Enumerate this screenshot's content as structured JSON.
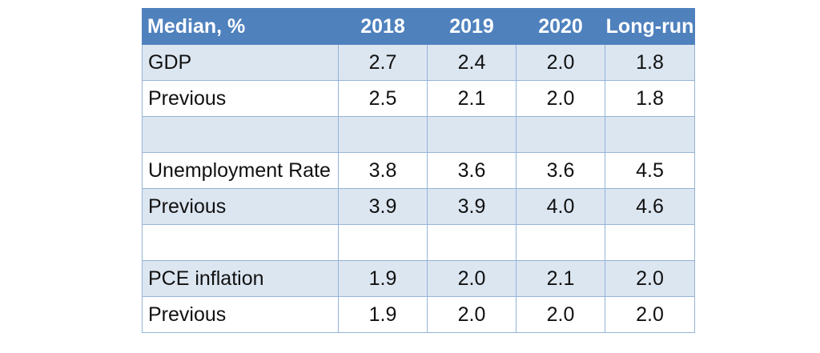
{
  "colors": {
    "header_bg": "#4f81bd",
    "header_text": "#ffffff",
    "band_bg": "#dce6f1",
    "plain_bg": "#ffffff",
    "border": "#95b3d7"
  },
  "table": {
    "headers": [
      "Median, %",
      "2018",
      "2019",
      "2020",
      "Long-run"
    ],
    "rows": [
      [
        "GDP",
        "2.7",
        "2.4",
        "2.0",
        "1.8"
      ],
      [
        "Previous",
        "2.5",
        "2.1",
        "2.0",
        "1.8"
      ],
      [
        "",
        "",
        "",
        "",
        ""
      ],
      [
        "Unemployment Rate",
        "3.8",
        "3.6",
        "3.6",
        "4.5"
      ],
      [
        "Previous",
        "3.9",
        "3.9",
        "4.0",
        "4.6"
      ],
      [
        "",
        "",
        "",
        "",
        ""
      ],
      [
        "PCE inflation",
        "1.9",
        "2.0",
        "2.1",
        "2.0"
      ],
      [
        "Previous",
        "1.9",
        "2.0",
        "2.0",
        "2.0"
      ]
    ]
  }
}
